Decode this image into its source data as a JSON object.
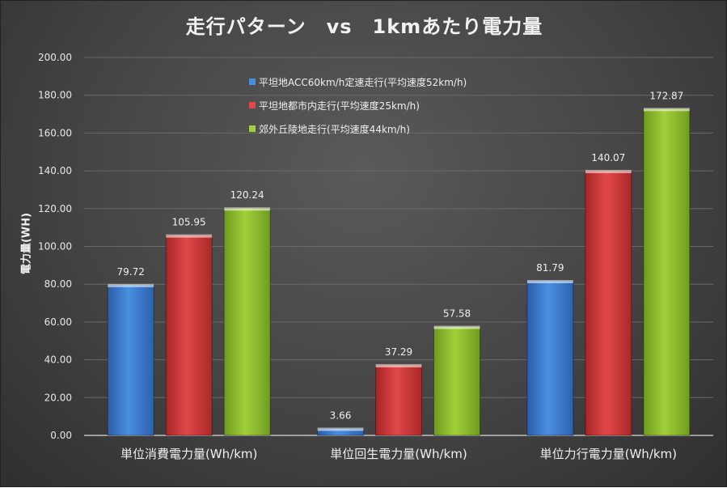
{
  "chart_data": {
    "type": "bar",
    "title": "走行パターン　vs　1kmあたり電力量",
    "xlabel": "",
    "ylabel": "電力量(WH)",
    "ylim": [
      0,
      200
    ],
    "ytick_step": 20,
    "ytick_labels": [
      "0.00",
      "20.00",
      "40.00",
      "60.00",
      "80.00",
      "100.00",
      "120.00",
      "140.00",
      "160.00",
      "180.00",
      "200.00"
    ],
    "categories": [
      "単位消費電力量(Wh/km)",
      "単位回生電力量(Wh/km)",
      "単位力行電力量(Wh/km)"
    ],
    "grid": true,
    "legend_position": "top-center",
    "series": [
      {
        "name": "平坦地ACC60km/h定速走行(平均速度52km/h)",
        "color": "#3f7fd0",
        "values": [
          79.72,
          3.66,
          81.79
        ],
        "labels": [
          "79.72",
          "3.66",
          "81.79"
        ]
      },
      {
        "name": "平坦地都市内走行(平均速度25km/h)",
        "color": "#d43a3a",
        "values": [
          105.95,
          37.29,
          140.07
        ],
        "labels": [
          "105.95",
          "37.29",
          "140.07"
        ]
      },
      {
        "name": "郊外丘陵地走行(平均速度44km/h)",
        "color": "#8fbf2f",
        "values": [
          120.24,
          57.58,
          172.87
        ],
        "labels": [
          "120.24",
          "57.58",
          "172.87"
        ]
      }
    ]
  }
}
